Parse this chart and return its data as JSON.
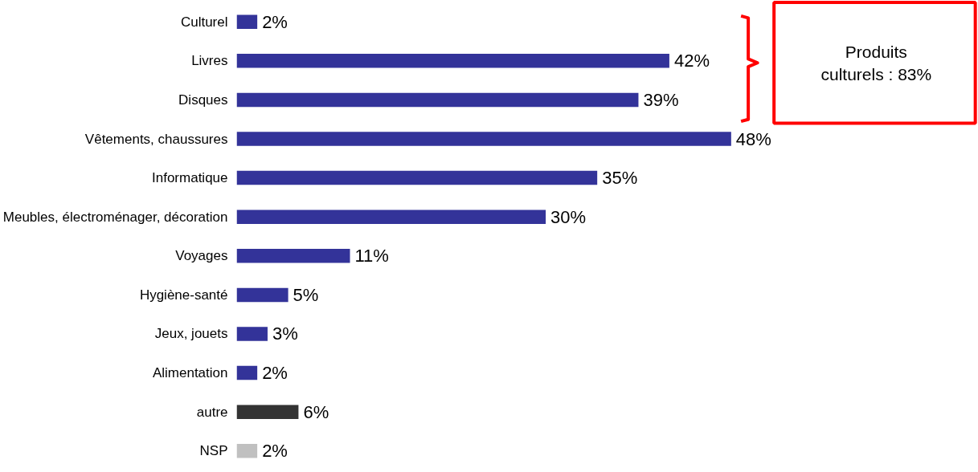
{
  "chart_data": {
    "type": "bar",
    "orientation": "horizontal",
    "categories": [
      "Culturel",
      "Livres",
      "Disques",
      "Vêtements, chaussures",
      "Informatique",
      "Meubles, électroménager, décoration",
      "Voyages",
      "Hygiène-santé",
      "Jeux, jouets",
      "Alimentation",
      "autre",
      "NSP"
    ],
    "values": [
      2,
      42,
      39,
      48,
      35,
      30,
      11,
      5,
      3,
      2,
      6,
      2
    ],
    "colors": [
      "#333399",
      "#333399",
      "#333399",
      "#333399",
      "#333399",
      "#333399",
      "#333399",
      "#333399",
      "#333399",
      "#333399",
      "#333333",
      "#c0c0c0"
    ],
    "value_labels": [
      "2%",
      "42%",
      "39%",
      "48%",
      "35%",
      "30%",
      "11%",
      "5%",
      "3%",
      "2%",
      "6%",
      "2%"
    ],
    "annotations": [
      "Produits culturels : 83%"
    ],
    "grid": false
  }
}
